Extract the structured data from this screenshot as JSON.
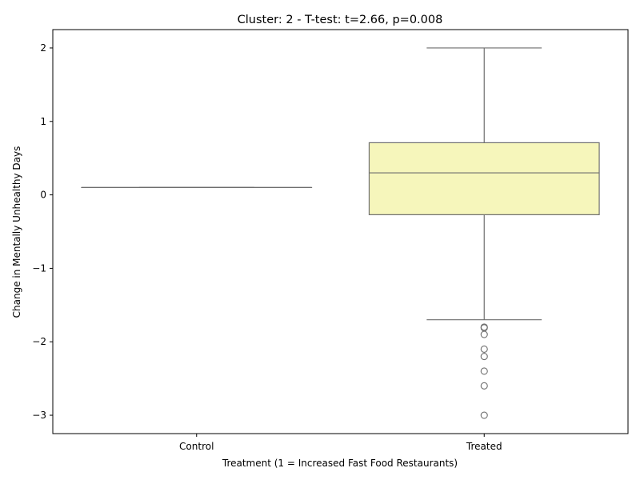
{
  "chart_data": {
    "type": "box",
    "title": "Cluster: 2 - T-test: t=2.66, p=0.008",
    "xlabel": "Treatment (1 = Increased Fast Food Restaurants)",
    "ylabel": "Change in Mentally Unhealthy Days",
    "categories": [
      "Control",
      "Treated"
    ],
    "ylim": [
      -3.25,
      2.25
    ],
    "yticks": [
      2,
      1,
      0,
      -1,
      -2,
      -3
    ],
    "ytick_labels": [
      "2",
      "1",
      "0",
      "−1",
      "−2",
      "−3"
    ],
    "grid": false,
    "boxes": [
      {
        "category": "Control",
        "whisker_low": 0.1,
        "q1": 0.1,
        "median": 0.1,
        "q3": 0.1,
        "whisker_high": 0.1,
        "outliers": [],
        "color": "#f6f6bb"
      },
      {
        "category": "Treated",
        "whisker_low": -1.7,
        "q1": -0.27,
        "median": 0.3,
        "q3": 0.71,
        "whisker_high": 2.0,
        "outliers": [
          -1.8,
          -1.81,
          -1.9,
          -2.1,
          -2.2,
          -2.4,
          -2.6,
          -3.0
        ],
        "color": "#f6f6bb"
      }
    ],
    "line_color": "#6e6e6e"
  }
}
